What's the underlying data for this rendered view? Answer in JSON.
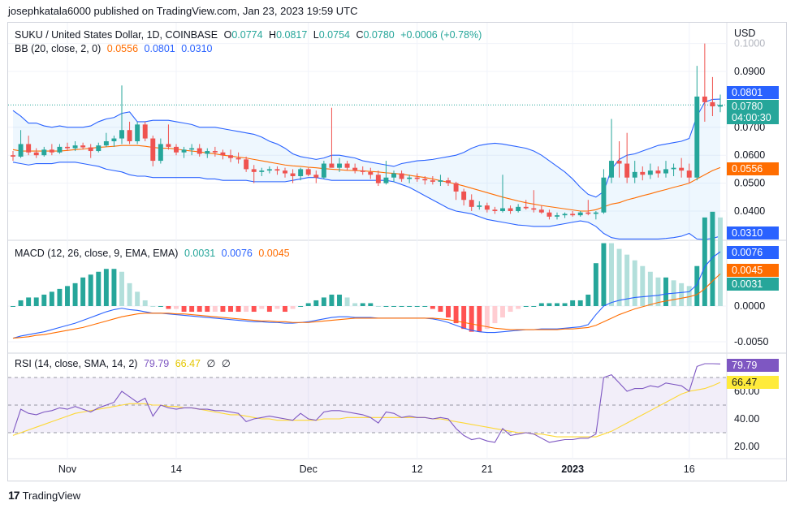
{
  "header": {
    "published": "josephkatala6000 published on TradingView.com, Jan 23, 2023 19:59 UTC"
  },
  "main_legend": {
    "symbol": "SUKU / United States Dollar, 1D, COINBASE",
    "o_label": "O",
    "o": "0.0774",
    "h_label": "H",
    "h": "0.0817",
    "l_label": "L",
    "l": "0.0754",
    "c_label": "C",
    "c": "0.0780",
    "change": "+0.0006 (+0.78%)"
  },
  "bb_legend": {
    "label": "BB (20, close, 2, 0)",
    "basis": "0.0556",
    "upper": "0.0801",
    "lower": "0.0310"
  },
  "macd_legend": {
    "label": "MACD (12, 26, close, 9, EMA, EMA)",
    "hist": "0.0031",
    "macd": "0.0076",
    "signal": "0.0045"
  },
  "rsi_legend": {
    "label": "RSI (14, close, SMA, 14, 2)",
    "rsi": "79.79",
    "ma": "66.47",
    "extra1": "∅",
    "extra2": "∅"
  },
  "currency": "USD",
  "price_axis": [
    "0.1000",
    "0.0900",
    "0.0700",
    "0.0600",
    "0.0500",
    "0.0400"
  ],
  "price_tags": {
    "upper": "0.0801",
    "close": "0.0780",
    "countdown": "04:00:30",
    "basis": "0.0556",
    "lower": "0.0310"
  },
  "macd_axis": [
    "0.0000",
    "-0.0050"
  ],
  "macd_tags": {
    "macd": "0.0076",
    "signal": "0.0045",
    "hist": "0.0031"
  },
  "rsi_axis": [
    "60.00",
    "40.00",
    "20.00"
  ],
  "rsi_tags": {
    "rsi": "79.79",
    "ma": "66.47"
  },
  "time_axis": [
    {
      "label": "Nov",
      "bold": false
    },
    {
      "label": "14",
      "bold": false
    },
    {
      "label": "Dec",
      "bold": false
    },
    {
      "label": "12",
      "bold": false
    },
    {
      "label": "21",
      "bold": false
    },
    {
      "label": "2023",
      "bold": true
    },
    {
      "label": "16",
      "bold": false
    }
  ],
  "brand": "TradingView",
  "colors": {
    "up": "#26a69a",
    "down": "#ef5350",
    "bb_upper": "#2962ff",
    "bb_basis": "#ff6d00",
    "macd": "#2962ff",
    "signal": "#ff6d00",
    "rsi": "#7e57c2",
    "rsi_ma": "#fdd835"
  },
  "chart_data": {
    "type": "candlestick",
    "title": "SUKU / United States Dollar, 1D, COINBASE",
    "ylim": [
      0.03,
      0.1
    ],
    "dates_start": "2022-10-25",
    "candles": [
      [
        0.06,
        0.0615,
        0.058,
        0.0595
      ],
      [
        0.0595,
        0.069,
        0.059,
        0.064
      ],
      [
        0.064,
        0.067,
        0.06,
        0.061
      ],
      [
        0.061,
        0.0625,
        0.059,
        0.06
      ],
      [
        0.06,
        0.063,
        0.0595,
        0.062
      ],
      [
        0.062,
        0.064,
        0.06,
        0.061
      ],
      [
        0.061,
        0.064,
        0.0605,
        0.063
      ],
      [
        0.063,
        0.0645,
        0.0615,
        0.0625
      ],
      [
        0.0625,
        0.065,
        0.0615,
        0.0635
      ],
      [
        0.0635,
        0.0645,
        0.062,
        0.0628
      ],
      [
        0.0628,
        0.064,
        0.059,
        0.0615
      ],
      [
        0.0615,
        0.0645,
        0.061,
        0.0635
      ],
      [
        0.0635,
        0.068,
        0.063,
        0.065
      ],
      [
        0.065,
        0.067,
        0.063,
        0.066
      ],
      [
        0.066,
        0.085,
        0.064,
        0.069
      ],
      [
        0.069,
        0.072,
        0.064,
        0.065
      ],
      [
        0.065,
        0.072,
        0.064,
        0.071
      ],
      [
        0.071,
        0.072,
        0.065,
        0.066
      ],
      [
        0.066,
        0.067,
        0.056,
        0.058
      ],
      [
        0.058,
        0.066,
        0.057,
        0.064
      ],
      [
        0.064,
        0.071,
        0.062,
        0.063
      ],
      [
        0.063,
        0.064,
        0.06,
        0.061
      ],
      [
        0.061,
        0.063,
        0.059,
        0.062
      ],
      [
        0.062,
        0.064,
        0.06,
        0.0625
      ],
      [
        0.0625,
        0.064,
        0.0595,
        0.0605
      ],
      [
        0.0605,
        0.0625,
        0.059,
        0.0615
      ],
      [
        0.0615,
        0.063,
        0.0595,
        0.061
      ],
      [
        0.061,
        0.062,
        0.0585,
        0.06
      ],
      [
        0.06,
        0.062,
        0.0575,
        0.059
      ],
      [
        0.059,
        0.061,
        0.057,
        0.0585
      ],
      [
        0.0585,
        0.0595,
        0.054,
        0.055
      ],
      [
        0.055,
        0.0565,
        0.05,
        0.054
      ],
      [
        0.054,
        0.0555,
        0.0525,
        0.0545
      ],
      [
        0.0545,
        0.056,
        0.0535,
        0.055
      ],
      [
        0.055,
        0.056,
        0.053,
        0.0545
      ],
      [
        0.0545,
        0.0555,
        0.052,
        0.0535
      ],
      [
        0.0535,
        0.055,
        0.05,
        0.0525
      ],
      [
        0.0525,
        0.0555,
        0.051,
        0.055
      ],
      [
        0.055,
        0.0555,
        0.0525,
        0.053
      ],
      [
        0.053,
        0.0545,
        0.05,
        0.052
      ],
      [
        0.052,
        0.058,
        0.0515,
        0.057
      ],
      [
        0.057,
        0.077,
        0.056,
        0.0555
      ],
      [
        0.0555,
        0.059,
        0.054,
        0.057
      ],
      [
        0.057,
        0.058,
        0.0545,
        0.0555
      ],
      [
        0.0555,
        0.057,
        0.0535,
        0.0545
      ],
      [
        0.0545,
        0.056,
        0.053,
        0.054
      ],
      [
        0.054,
        0.0555,
        0.0515,
        0.053
      ],
      [
        0.053,
        0.0545,
        0.049,
        0.05
      ],
      [
        0.05,
        0.058,
        0.0495,
        0.052
      ],
      [
        0.052,
        0.0545,
        0.0505,
        0.0535
      ],
      [
        0.0535,
        0.0545,
        0.0505,
        0.0515
      ],
      [
        0.0515,
        0.053,
        0.05,
        0.052
      ],
      [
        0.052,
        0.0535,
        0.0505,
        0.0515
      ],
      [
        0.0515,
        0.0525,
        0.0495,
        0.051
      ],
      [
        0.051,
        0.0525,
        0.0495,
        0.0505
      ],
      [
        0.0505,
        0.053,
        0.049,
        0.051
      ],
      [
        0.051,
        0.052,
        0.049,
        0.05
      ],
      [
        0.05,
        0.0505,
        0.044,
        0.047
      ],
      [
        0.047,
        0.048,
        0.042,
        0.044
      ],
      [
        0.044,
        0.046,
        0.04,
        0.0415
      ],
      [
        0.0415,
        0.0435,
        0.0405,
        0.042
      ],
      [
        0.042,
        0.043,
        0.0395,
        0.0405
      ],
      [
        0.0405,
        0.0415,
        0.039,
        0.04
      ],
      [
        0.04,
        0.053,
        0.0395,
        0.041
      ],
      [
        0.041,
        0.042,
        0.039,
        0.04
      ],
      [
        0.04,
        0.0425,
        0.0395,
        0.0415
      ],
      [
        0.0415,
        0.044,
        0.0405,
        0.041
      ],
      [
        0.041,
        0.0475,
        0.0395,
        0.0405
      ],
      [
        0.0405,
        0.042,
        0.039,
        0.0395
      ],
      [
        0.0395,
        0.0405,
        0.037,
        0.038
      ],
      [
        0.038,
        0.0395,
        0.037,
        0.0385
      ],
      [
        0.0385,
        0.0395,
        0.0375,
        0.039
      ],
      [
        0.039,
        0.04,
        0.038,
        0.0385
      ],
      [
        0.0385,
        0.04,
        0.038,
        0.0395
      ],
      [
        0.0395,
        0.044,
        0.0385,
        0.039
      ],
      [
        0.039,
        0.04,
        0.037,
        0.0395
      ],
      [
        0.0395,
        0.055,
        0.039,
        0.052
      ],
      [
        0.052,
        0.073,
        0.05,
        0.058
      ],
      [
        0.058,
        0.065,
        0.052,
        0.057
      ],
      [
        0.057,
        0.068,
        0.05,
        0.052
      ],
      [
        0.052,
        0.058,
        0.05,
        0.054
      ],
      [
        0.054,
        0.056,
        0.051,
        0.053
      ],
      [
        0.053,
        0.057,
        0.0515,
        0.0545
      ],
      [
        0.0545,
        0.056,
        0.052,
        0.0535
      ],
      [
        0.0535,
        0.058,
        0.052,
        0.055
      ],
      [
        0.055,
        0.057,
        0.0525,
        0.0555
      ],
      [
        0.0555,
        0.059,
        0.052,
        0.0545
      ],
      [
        0.0545,
        0.057,
        0.05,
        0.052
      ],
      [
        0.052,
        0.092,
        0.051,
        0.081
      ],
      [
        0.081,
        0.1,
        0.072,
        0.079
      ],
      [
        0.079,
        0.088,
        0.074,
        0.0775
      ],
      [
        0.0774,
        0.0817,
        0.0754,
        0.078
      ]
    ],
    "bb_upper": [
      0.076,
      0.074,
      0.0715,
      0.0715,
      0.0705,
      0.07,
      0.0705,
      0.07,
      0.07,
      0.07,
      0.0705,
      0.072,
      0.073,
      0.0735,
      0.075,
      0.0755,
      0.072,
      0.072,
      0.0725,
      0.0725,
      0.0725,
      0.072,
      0.0715,
      0.071,
      0.07,
      0.07,
      0.07,
      0.0695,
      0.069,
      0.0685,
      0.068,
      0.0675,
      0.0665,
      0.065,
      0.064,
      0.0625,
      0.0605,
      0.0595,
      0.059,
      0.0585,
      0.059,
      0.06,
      0.06,
      0.0595,
      0.059,
      0.058,
      0.0575,
      0.057,
      0.0565,
      0.056,
      0.057,
      0.0575,
      0.058,
      0.0582,
      0.0585,
      0.059,
      0.0595,
      0.06,
      0.061,
      0.0625,
      0.0635,
      0.064,
      0.0643,
      0.064,
      0.0635,
      0.063,
      0.0625,
      0.0615,
      0.06,
      0.058,
      0.056,
      0.054,
      0.0515,
      0.0485,
      0.046,
      0.045,
      0.047,
      0.055,
      0.0585,
      0.06,
      0.0605,
      0.0615,
      0.0625,
      0.0635,
      0.064,
      0.0645,
      0.065,
      0.066,
      0.074,
      0.079,
      0.08,
      0.0801
    ],
    "bb_basis": [
      0.062,
      0.0615,
      0.0615,
      0.0615,
      0.0615,
      0.0615,
      0.0615,
      0.0617,
      0.062,
      0.0622,
      0.0625,
      0.0628,
      0.063,
      0.0632,
      0.0635,
      0.0635,
      0.0635,
      0.0632,
      0.0628,
      0.0625,
      0.0625,
      0.0622,
      0.0618,
      0.0615,
      0.0612,
      0.0608,
      0.0605,
      0.06,
      0.0597,
      0.0593,
      0.059,
      0.0585,
      0.058,
      0.0575,
      0.057,
      0.0565,
      0.0562,
      0.056,
      0.0557,
      0.0555,
      0.0552,
      0.055,
      0.0548,
      0.0546,
      0.0545,
      0.0544,
      0.0542,
      0.054,
      0.0537,
      0.0535,
      0.0532,
      0.0528,
      0.0524,
      0.052,
      0.0515,
      0.0509,
      0.0503,
      0.0497,
      0.049,
      0.0482,
      0.0474,
      0.0466,
      0.0458,
      0.045,
      0.0443,
      0.0436,
      0.043,
      0.0425,
      0.042,
      0.0416,
      0.0412,
      0.0408,
      0.0404,
      0.04,
      0.04,
      0.0405,
      0.0415,
      0.0425,
      0.043,
      0.044,
      0.0447,
      0.0455,
      0.0462,
      0.047,
      0.0477,
      0.0485,
      0.0492,
      0.05,
      0.0515,
      0.053,
      0.0545,
      0.0556
    ],
    "bb_lower": [
      0.0575,
      0.057,
      0.0565,
      0.057,
      0.057,
      0.057,
      0.0575,
      0.0575,
      0.0575,
      0.057,
      0.0565,
      0.056,
      0.055,
      0.0545,
      0.054,
      0.053,
      0.0525,
      0.0525,
      0.052,
      0.052,
      0.052,
      0.052,
      0.052,
      0.052,
      0.052,
      0.0515,
      0.0515,
      0.051,
      0.051,
      0.051,
      0.051,
      0.0505,
      0.0505,
      0.0505,
      0.0505,
      0.0505,
      0.051,
      0.0515,
      0.052,
      0.052,
      0.0515,
      0.051,
      0.051,
      0.051,
      0.051,
      0.051,
      0.051,
      0.051,
      0.051,
      0.0505,
      0.0495,
      0.0485,
      0.047,
      0.0455,
      0.044,
      0.0425,
      0.041,
      0.04,
      0.0395,
      0.039,
      0.038,
      0.037,
      0.0365,
      0.036,
      0.0355,
      0.035,
      0.0348,
      0.0345,
      0.0345,
      0.0345,
      0.035,
      0.0355,
      0.036,
      0.0365,
      0.036,
      0.0345,
      0.032,
      0.0305,
      0.03,
      0.03,
      0.03,
      0.03,
      0.03,
      0.03,
      0.0302,
      0.0305,
      0.031,
      0.032,
      0.03,
      0.0298,
      0.0302,
      0.031
    ],
    "macd": [
      -0.0045,
      -0.0042,
      -0.004,
      -0.0038,
      -0.0036,
      -0.0033,
      -0.003,
      -0.0027,
      -0.0024,
      -0.002,
      -0.0016,
      -0.0012,
      -0.0008,
      -0.0005,
      -0.0003,
      -0.0005,
      -0.0006,
      -0.0008,
      -0.001,
      -0.001,
      -0.0011,
      -0.0012,
      -0.0013,
      -0.0014,
      -0.0015,
      -0.0016,
      -0.0017,
      -0.0018,
      -0.0019,
      -0.002,
      -0.0021,
      -0.0022,
      -0.0022,
      -0.0023,
      -0.0023,
      -0.0024,
      -0.0024,
      -0.0023,
      -0.0022,
      -0.002,
      -0.0018,
      -0.0016,
      -0.0015,
      -0.0015,
      -0.0016,
      -0.0016,
      -0.0016,
      -0.0017,
      -0.0017,
      -0.0017,
      -0.0017,
      -0.0017,
      -0.0017,
      -0.0017,
      -0.0018,
      -0.002,
      -0.0023,
      -0.0027,
      -0.0031,
      -0.0034,
      -0.0036,
      -0.0037,
      -0.0037,
      -0.0036,
      -0.0035,
      -0.0034,
      -0.0033,
      -0.0033,
      -0.0032,
      -0.0032,
      -0.0032,
      -0.0031,
      -0.003,
      -0.0029,
      -0.0026,
      -0.0012,
      0.0,
      0.0005,
      0.0008,
      0.001,
      0.0012,
      0.0013,
      0.0014,
      0.0015,
      0.0017,
      0.0018,
      0.0019,
      0.002,
      0.003,
      0.0055,
      0.0068,
      0.0076
    ],
    "signal": [
      -0.0045,
      -0.0044,
      -0.0043,
      -0.0041,
      -0.004,
      -0.0038,
      -0.0036,
      -0.0034,
      -0.0032,
      -0.003,
      -0.0027,
      -0.0024,
      -0.0021,
      -0.0018,
      -0.0015,
      -0.0013,
      -0.0011,
      -0.001,
      -0.001,
      -0.001,
      -0.001,
      -0.0011,
      -0.0011,
      -0.0012,
      -0.0013,
      -0.0014,
      -0.0015,
      -0.0016,
      -0.0017,
      -0.0018,
      -0.0019,
      -0.002,
      -0.0021,
      -0.0021,
      -0.0022,
      -0.0022,
      -0.0023,
      -0.0023,
      -0.0023,
      -0.0022,
      -0.0021,
      -0.002,
      -0.0019,
      -0.0018,
      -0.0017,
      -0.0017,
      -0.0017,
      -0.0017,
      -0.0017,
      -0.0017,
      -0.0017,
      -0.0017,
      -0.0017,
      -0.0017,
      -0.0017,
      -0.0018,
      -0.0019,
      -0.0021,
      -0.0023,
      -0.0025,
      -0.0027,
      -0.0029,
      -0.0031,
      -0.0032,
      -0.0033,
      -0.0033,
      -0.0033,
      -0.0033,
      -0.0033,
      -0.0033,
      -0.0033,
      -0.0032,
      -0.0032,
      -0.0031,
      -0.003,
      -0.0027,
      -0.0022,
      -0.0017,
      -0.0012,
      -0.0008,
      -0.0004,
      -0.0001,
      0.0002,
      0.0005,
      0.0007,
      0.0009,
      0.0011,
      0.0013,
      0.0016,
      0.0024,
      0.0035,
      0.0045
    ],
    "rsi": [
      30,
      47,
      44,
      43,
      45,
      46,
      48,
      47,
      49,
      47,
      45,
      48,
      50,
      52,
      60,
      56,
      52,
      55,
      42,
      50,
      48,
      47,
      48,
      48,
      47,
      47,
      46,
      46,
      45,
      44,
      38,
      40,
      41,
      42,
      41,
      40,
      39,
      44,
      40,
      39,
      45,
      46,
      46,
      45,
      44,
      43,
      41,
      37,
      45,
      44,
      41,
      42,
      41,
      41,
      40,
      41,
      40,
      33,
      28,
      25,
      26,
      24,
      23,
      33,
      28,
      29,
      30,
      29,
      26,
      23,
      24,
      25,
      25,
      26,
      26,
      29,
      70,
      72,
      66,
      60,
      62,
      62,
      64,
      63,
      66,
      65,
      64,
      60,
      78,
      80,
      80,
      79.79
    ],
    "rsi_ma": [
      28,
      30,
      32,
      34,
      36,
      38,
      40,
      42,
      44,
      45,
      46,
      47,
      48,
      49,
      50,
      51,
      51,
      51,
      50,
      50,
      49,
      49,
      48,
      48,
      47,
      46,
      45,
      44,
      43,
      43,
      42,
      41,
      40,
      40,
      39,
      39,
      39,
      39,
      39,
      39,
      40,
      40,
      40,
      41,
      41,
      41,
      41,
      41,
      41,
      41,
      41,
      41,
      41,
      41,
      40,
      40,
      39,
      38,
      37,
      36,
      35,
      34,
      33,
      32,
      31,
      30,
      30,
      29,
      29,
      28,
      27,
      27,
      27,
      27,
      27,
      27,
      29,
      31,
      34,
      37,
      40,
      43,
      46,
      49,
      52,
      55,
      58,
      60,
      61,
      62,
      64,
      66.47
    ]
  }
}
